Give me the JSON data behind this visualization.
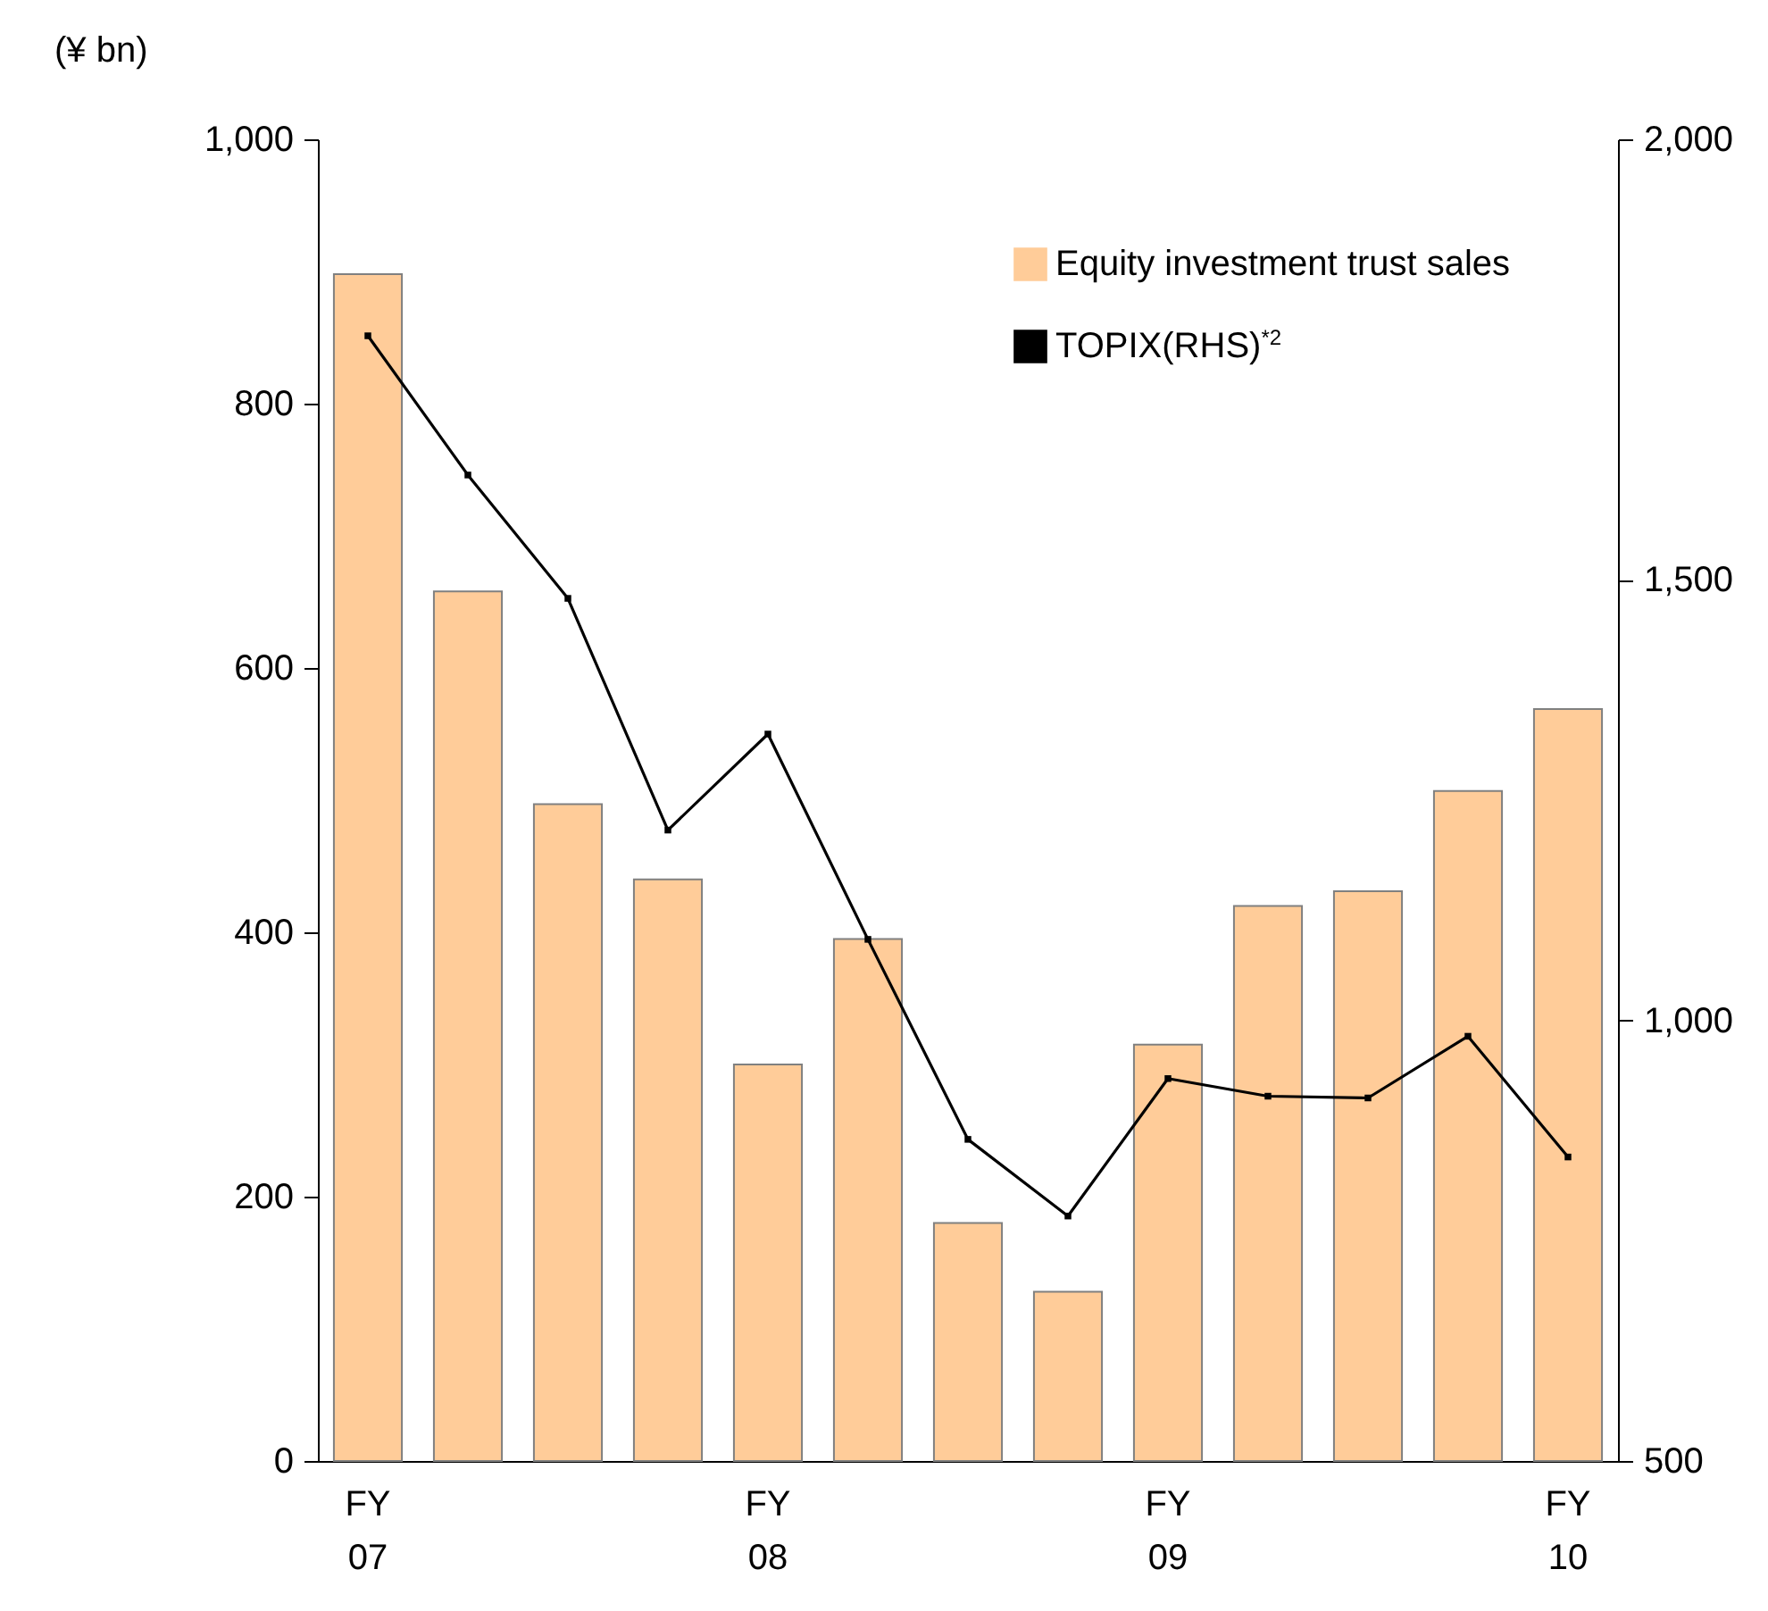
{
  "chart_data": {
    "type": "bar",
    "ylabel": "(¥ bn)",
    "categories": [
      "FY\n07",
      null,
      null,
      null,
      "FY\n08",
      null,
      null,
      null,
      "FY\n09",
      null,
      null,
      null,
      "FY\n10"
    ],
    "series": [
      {
        "name": "Equity investment trust sales",
        "type": "bar",
        "color": "#ffcc99",
        "values": [
          898,
          658,
          497,
          440,
          300,
          395,
          180,
          128,
          315,
          420,
          431,
          507,
          569
        ]
      },
      {
        "name": "TOPIX(RHS)$^{*2}$",
        "type": "line",
        "axis": "y2",
        "color": "#000000",
        "values": [
          1777,
          1619,
          1479,
          1216,
          1325,
          1092,
          865,
          778,
          934,
          914,
          912,
          982,
          845
        ]
      }
    ],
    "ylim": [
      0,
      1000
    ],
    "yticks": [
      0,
      200,
      400,
      600,
      800,
      {
        "value": 1000,
        "label": "1,000"
      }
    ],
    "y2lim": [
      500,
      2000
    ],
    "y2ticks": [
      500,
      {
        "value": 1000,
        "label": "1,000"
      },
      {
        "value": 1500,
        "label": "1,500"
      },
      {
        "value": 2000,
        "label": "2,000"
      }
    ],
    "grid": false,
    "legend": "top right",
    "marker": "square"
  }
}
